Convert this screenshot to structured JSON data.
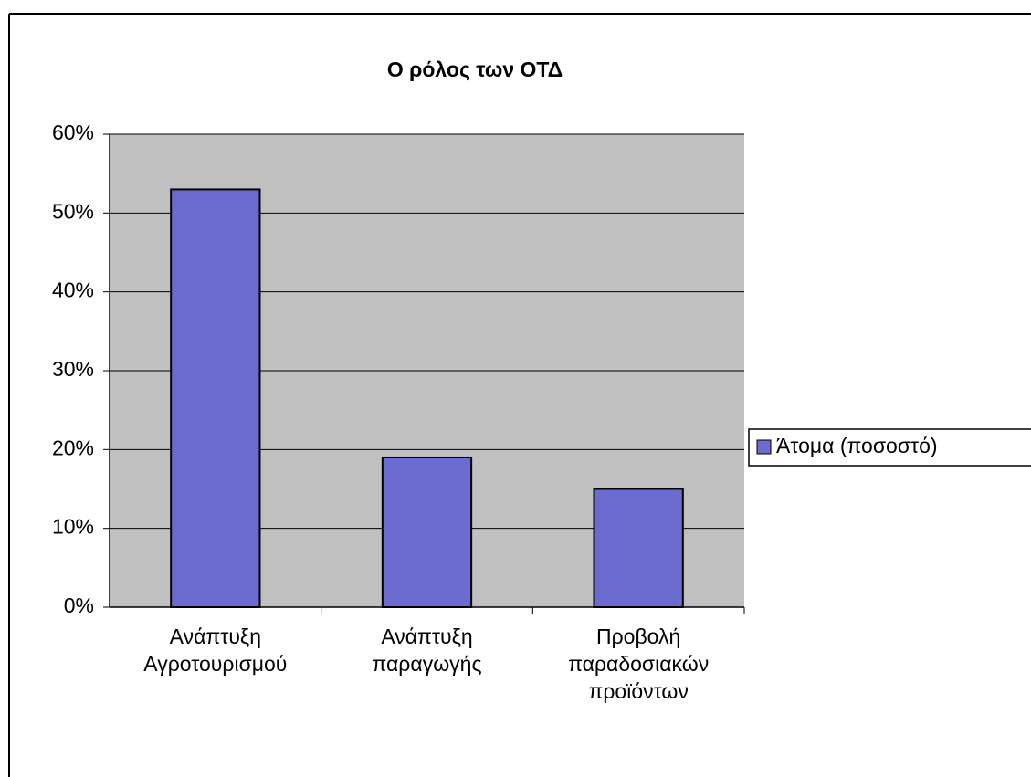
{
  "chart_data": {
    "type": "bar",
    "title": "Ο ρόλος των ΟΤΔ",
    "categories": [
      "Ανάπτυξη\nΑγροτουρισμού",
      "Ανάπτυξη\nπαραγωγής",
      "Προβολή\nπαραδοσιακών\nπροϊόντων"
    ],
    "series": [
      {
        "name": "Άτομα (ποσοστό)",
        "color": "#6b6bd0",
        "values": [
          53,
          19,
          15
        ]
      }
    ],
    "ylim": [
      0,
      60
    ],
    "yticks": [
      {
        "value": 0,
        "label": "0%"
      },
      {
        "value": 10,
        "label": "10%"
      },
      {
        "value": 20,
        "label": "20%"
      },
      {
        "value": 30,
        "label": "30%"
      },
      {
        "value": 40,
        "label": "40%"
      },
      {
        "value": 50,
        "label": "50%"
      },
      {
        "value": 60,
        "label": "60%"
      }
    ],
    "grid": true,
    "legend": "right"
  }
}
